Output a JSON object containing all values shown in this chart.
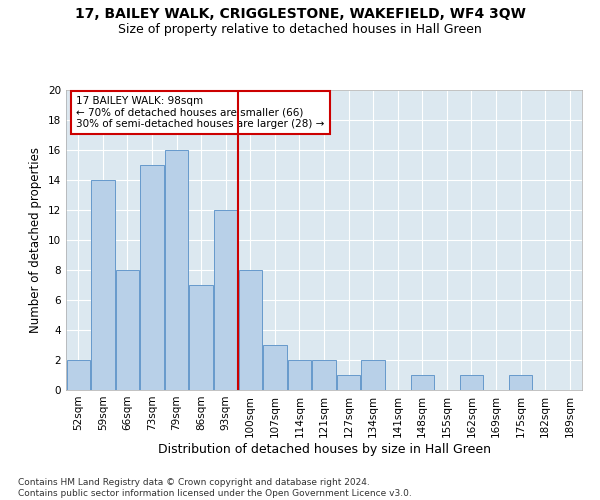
{
  "title": "17, BAILEY WALK, CRIGGLESTONE, WAKEFIELD, WF4 3QW",
  "subtitle": "Size of property relative to detached houses in Hall Green",
  "xlabel": "Distribution of detached houses by size in Hall Green",
  "ylabel": "Number of detached properties",
  "categories": [
    "52sqm",
    "59sqm",
    "66sqm",
    "73sqm",
    "79sqm",
    "86sqm",
    "93sqm",
    "100sqm",
    "107sqm",
    "114sqm",
    "121sqm",
    "127sqm",
    "134sqm",
    "141sqm",
    "148sqm",
    "155sqm",
    "162sqm",
    "169sqm",
    "175sqm",
    "182sqm",
    "189sqm"
  ],
  "values": [
    2,
    14,
    8,
    15,
    16,
    7,
    12,
    8,
    3,
    2,
    2,
    1,
    2,
    0,
    1,
    0,
    1,
    0,
    1,
    0,
    0
  ],
  "bar_color": "#b8d0e8",
  "bar_edgecolor": "#6699cc",
  "bar_linewidth": 0.7,
  "vline_color": "#cc0000",
  "vline_index": 7,
  "annotation_text": "17 BAILEY WALK: 98sqm\n← 70% of detached houses are smaller (66)\n30% of semi-detached houses are larger (28) →",
  "annotation_box_facecolor": "#ffffff",
  "annotation_box_edgecolor": "#cc0000",
  "bg_color": "#dce8f0",
  "grid_color": "#ffffff",
  "ylim": [
    0,
    20
  ],
  "yticks": [
    0,
    2,
    4,
    6,
    8,
    10,
    12,
    14,
    16,
    18,
    20
  ],
  "title_fontsize": 10,
  "subtitle_fontsize": 9,
  "xlabel_fontsize": 9,
  "ylabel_fontsize": 8.5,
  "tick_fontsize": 7.5,
  "annotation_fontsize": 7.5,
  "footer_fontsize": 6.5,
  "footer": "Contains HM Land Registry data © Crown copyright and database right 2024.\nContains public sector information licensed under the Open Government Licence v3.0."
}
